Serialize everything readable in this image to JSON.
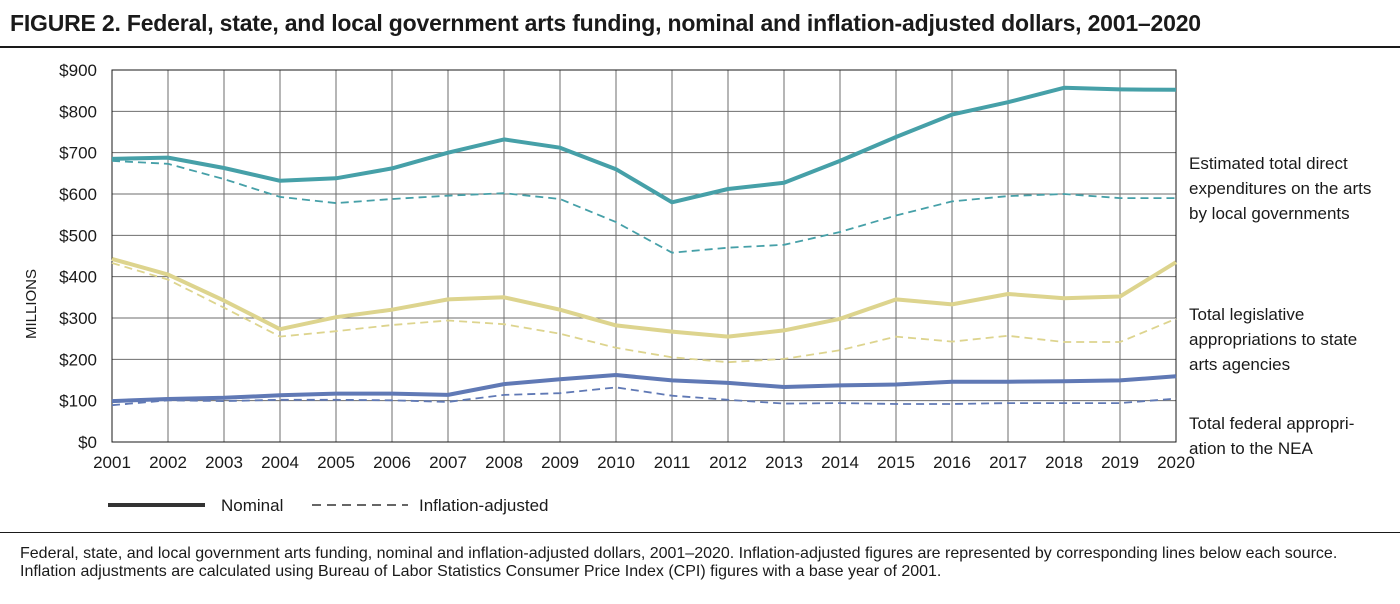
{
  "figure": {
    "title": "FIGURE 2. Federal, state, and local government arts funding, nominal and inflation-adjusted dollars, 2001–2020",
    "note": "Federal, state, and local government arts funding, nominal and inflation-adjusted dollars, 2001–2020. Inflation-adjusted figures are represented by corresponding lines below each source. Inflation adjustments are calculated using Bureau of Labor Statistics Consumer Price Index (CPI) figures with a base year of 2001."
  },
  "chart_data": {
    "type": "line",
    "ylabel": "MILLIONS",
    "ylim": [
      0,
      900
    ],
    "y_ticks": [
      {
        "value": 0,
        "label": "$0"
      },
      {
        "value": 100,
        "label": "$100"
      },
      {
        "value": 200,
        "label": "$200"
      },
      {
        "value": 300,
        "label": "$300"
      },
      {
        "value": 400,
        "label": "$400"
      },
      {
        "value": 500,
        "label": "$500"
      },
      {
        "value": 600,
        "label": "$600"
      },
      {
        "value": 700,
        "label": "$700"
      },
      {
        "value": 800,
        "label": "$800"
      },
      {
        "value": 900,
        "label": "$900"
      }
    ],
    "x": [
      "2001",
      "2002",
      "2003",
      "2004",
      "2005",
      "2006",
      "2007",
      "2008",
      "2009",
      "2010",
      "2011",
      "2012",
      "2013",
      "2014",
      "2015",
      "2016",
      "2017",
      "2018",
      "2019",
      "2020"
    ],
    "grid": true,
    "legend_position": "bottom-left",
    "legend": {
      "nominal": "Nominal",
      "adjusted": "Inflation-adjusted"
    },
    "series": [
      {
        "name": "Estimated total direct expenditures on the arts by local governments",
        "label_lines": [
          "Estimated total direct",
          "expenditures on the arts",
          "by local governments"
        ],
        "color": "#46a0a8",
        "nominal": [
          685,
          688,
          663,
          632,
          638,
          662,
          700,
          732,
          712,
          660,
          580,
          612,
          627,
          680,
          738,
          792,
          822,
          857,
          853,
          852
        ],
        "adjusted": [
          680,
          673,
          636,
          593,
          578,
          588,
          596,
          602,
          588,
          532,
          458,
          470,
          477,
          508,
          548,
          582,
          595,
          600,
          590,
          590
        ]
      },
      {
        "name": "Total legislative appropriations to state arts agencies",
        "label_lines": [
          "Total legislative",
          "appropriations to state",
          "arts agencies"
        ],
        "color": "#ddd48e",
        "nominal": [
          443,
          405,
          342,
          273,
          302,
          320,
          345,
          350,
          320,
          282,
          267,
          255,
          270,
          298,
          345,
          333,
          358,
          348,
          352,
          435
        ],
        "adjusted": [
          433,
          393,
          325,
          255,
          268,
          283,
          294,
          285,
          262,
          228,
          205,
          193,
          201,
          222,
          255,
          243,
          257,
          242,
          242,
          298
        ]
      },
      {
        "name": "Total federal appropriation to the NEA",
        "label_lines": [
          "Total federal appropri-",
          "ation to the NEA"
        ],
        "color": "#6079b5",
        "nominal": [
          99,
          104,
          107,
          113,
          117,
          117,
          114,
          140,
          152,
          162,
          149,
          143,
          133,
          137,
          139,
          146,
          146,
          147,
          149,
          159
        ],
        "adjusted": [
          89,
          101,
          99,
          102,
          102,
          101,
          97,
          114,
          118,
          132,
          112,
          102,
          93,
          94,
          92,
          92,
          94,
          94,
          94,
          105
        ]
      }
    ]
  }
}
